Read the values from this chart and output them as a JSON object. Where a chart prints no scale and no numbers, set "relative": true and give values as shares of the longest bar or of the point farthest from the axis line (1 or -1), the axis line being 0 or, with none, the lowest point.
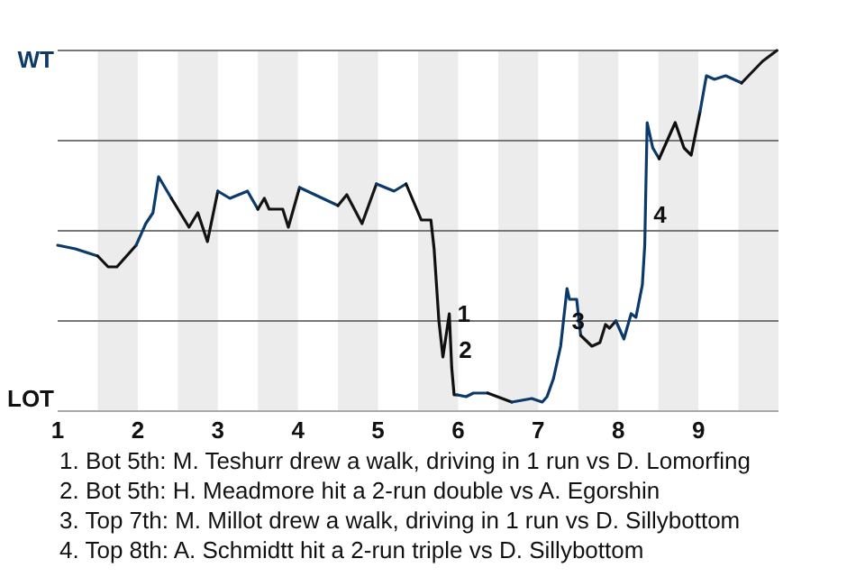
{
  "chart_data": {
    "type": "line",
    "relative": true,
    "xlim": [
      1,
      10
    ],
    "xticks": [
      1,
      2,
      3,
      4,
      5,
      6,
      7,
      8,
      9
    ],
    "grid": "y",
    "marker": "none",
    "line_style": "solid",
    "bands": [
      {
        "axis": "x",
        "from": 1.5,
        "to": 2,
        "color": "#ececec"
      },
      {
        "axis": "x",
        "from": 2.5,
        "to": 3,
        "color": "#ececec"
      },
      {
        "axis": "x",
        "from": 3.5,
        "to": 4,
        "color": "#ececec"
      },
      {
        "axis": "x",
        "from": 4.5,
        "to": 5,
        "color": "#ececec"
      },
      {
        "axis": "x",
        "from": 5.5,
        "to": 6,
        "color": "#ececec"
      },
      {
        "axis": "x",
        "from": 6.5,
        "to": 7,
        "color": "#ececec"
      },
      {
        "axis": "x",
        "from": 7.5,
        "to": 8,
        "color": "#ececec"
      },
      {
        "axis": "x",
        "from": 8.5,
        "to": 9,
        "color": "#ececec"
      },
      {
        "axis": "x",
        "from": 9.5,
        "to": 10,
        "color": "#ececec"
      }
    ],
    "series": [
      {
        "color": "#0b3a6b",
        "x": [
          1,
          1.22,
          1.5
        ],
        "values": [
          0.46,
          0.45,
          0.43
        ]
      },
      {
        "color": "#111111",
        "x": [
          1.5,
          1.63,
          1.74,
          1.98
        ],
        "values": [
          0.43,
          0.4,
          0.4,
          0.46
        ]
      },
      {
        "color": "#0b3a6c",
        "x": [
          1.98,
          2.1,
          2.19,
          2.26,
          2.42
        ],
        "values": [
          0.46,
          0.52,
          0.55,
          0.65,
          0.59
        ]
      },
      {
        "color": "#121212",
        "x": [
          2.42,
          2.64,
          2.75,
          2.87,
          3
        ],
        "values": [
          0.59,
          0.51,
          0.55,
          0.47,
          0.61
        ]
      },
      {
        "color": "#0b3a6d",
        "x": [
          3,
          3.15,
          3.37,
          3.5
        ],
        "values": [
          0.61,
          0.59,
          0.61,
          0.56
        ]
      },
      {
        "color": "#131313",
        "x": [
          3.5,
          3.58,
          3.64,
          3.81,
          3.88,
          4.02
        ],
        "values": [
          0.56,
          0.59,
          0.56,
          0.56,
          0.51,
          0.62
        ]
      },
      {
        "color": "#0b3b6b",
        "x": [
          4.02,
          4.5
        ],
        "values": [
          0.62,
          0.57
        ]
      },
      {
        "color": "#141414",
        "x": [
          4.5,
          4.61,
          4.8,
          4.98
        ],
        "values": [
          0.57,
          0.6,
          0.52,
          0.63
        ]
      },
      {
        "color": "#0c3a6b",
        "x": [
          4.98,
          5.2,
          5.35
        ],
        "values": [
          0.63,
          0.61,
          0.63
        ]
      },
      {
        "color": "#101010",
        "x": [
          5.35,
          5.54,
          5.66,
          5.7,
          5.76,
          5.81,
          5.89,
          5.92,
          5.95,
          5.99
        ],
        "values": [
          0.63,
          0.53,
          0.53,
          0.45,
          0.25,
          0.15,
          0.27,
          0.12,
          0.045,
          0.045
        ]
      },
      {
        "color": "#0a3a6b",
        "x": [
          5.99,
          6.1,
          6.19,
          6.37
        ],
        "values": [
          0.045,
          0.04,
          0.05,
          0.05
        ]
      },
      {
        "color": "#0f0f0f",
        "x": [
          6.37,
          6.67
        ],
        "values": [
          0.05,
          0.025
        ]
      },
      {
        "color": "#0b396b",
        "x": [
          6.67,
          6.92,
          7.05,
          7.11,
          7.19,
          7.28,
          7.36,
          7.39,
          7.48,
          7.53
        ],
        "values": [
          0.025,
          0.035,
          0.025,
          0.04,
          0.09,
          0.18,
          0.34,
          0.31,
          0.31,
          0.21
        ]
      },
      {
        "color": "#151515",
        "x": [
          7.53,
          7.67,
          7.77,
          7.84,
          7.89,
          7.97
        ],
        "values": [
          0.21,
          0.18,
          0.19,
          0.24,
          0.23,
          0.25
        ]
      },
      {
        "color": "#0b3a6a",
        "x": [
          7.97,
          8.07,
          8.16,
          8.22,
          8.3,
          8.33,
          8.36,
          8.43,
          8.51
        ],
        "values": [
          0.25,
          0.2,
          0.27,
          0.26,
          0.35,
          0.46,
          0.8,
          0.73,
          0.7
        ]
      },
      {
        "color": "#0e0e0e",
        "x": [
          8.51,
          8.71,
          8.82,
          8.91,
          9.02
        ],
        "values": [
          0.7,
          0.8,
          0.73,
          0.71,
          0.83
        ]
      },
      {
        "color": "#0c3b6c",
        "x": [
          9.02,
          9.1,
          9.2,
          9.34,
          9.54
        ],
        "values": [
          0.83,
          0.93,
          0.92,
          0.93,
          0.91
        ]
      },
      {
        "color": "#161616",
        "x": [
          9.54,
          9.8,
          9.98
        ],
        "values": [
          0.91,
          0.97,
          1
        ]
      }
    ],
    "annotations": [
      "WT",
      "LOT",
      {
        "text": "1",
        "x": 5.89,
        "y": 0.27
      },
      {
        "text": "2",
        "x": 5.91,
        "y": 0.17
      },
      {
        "text": "3",
        "x": 7.32,
        "y": 0.25
      },
      {
        "text": "4",
        "x": 8.34,
        "y": 0.545
      },
      "1. Bot 5th: M. Teshurr drew a walk, driving in 1 run vs D. Lomorfing",
      "2. Bot 5th: H. Meadmore hit a 2-run double vs A. Egorshin",
      "3. Top 7th: M. Millot drew a walk, driving in 1 run vs D. Sillybottom",
      "4. Top 8th: A. Schmidtt hit a 2-run triple vs D. Sillybottom"
    ]
  }
}
